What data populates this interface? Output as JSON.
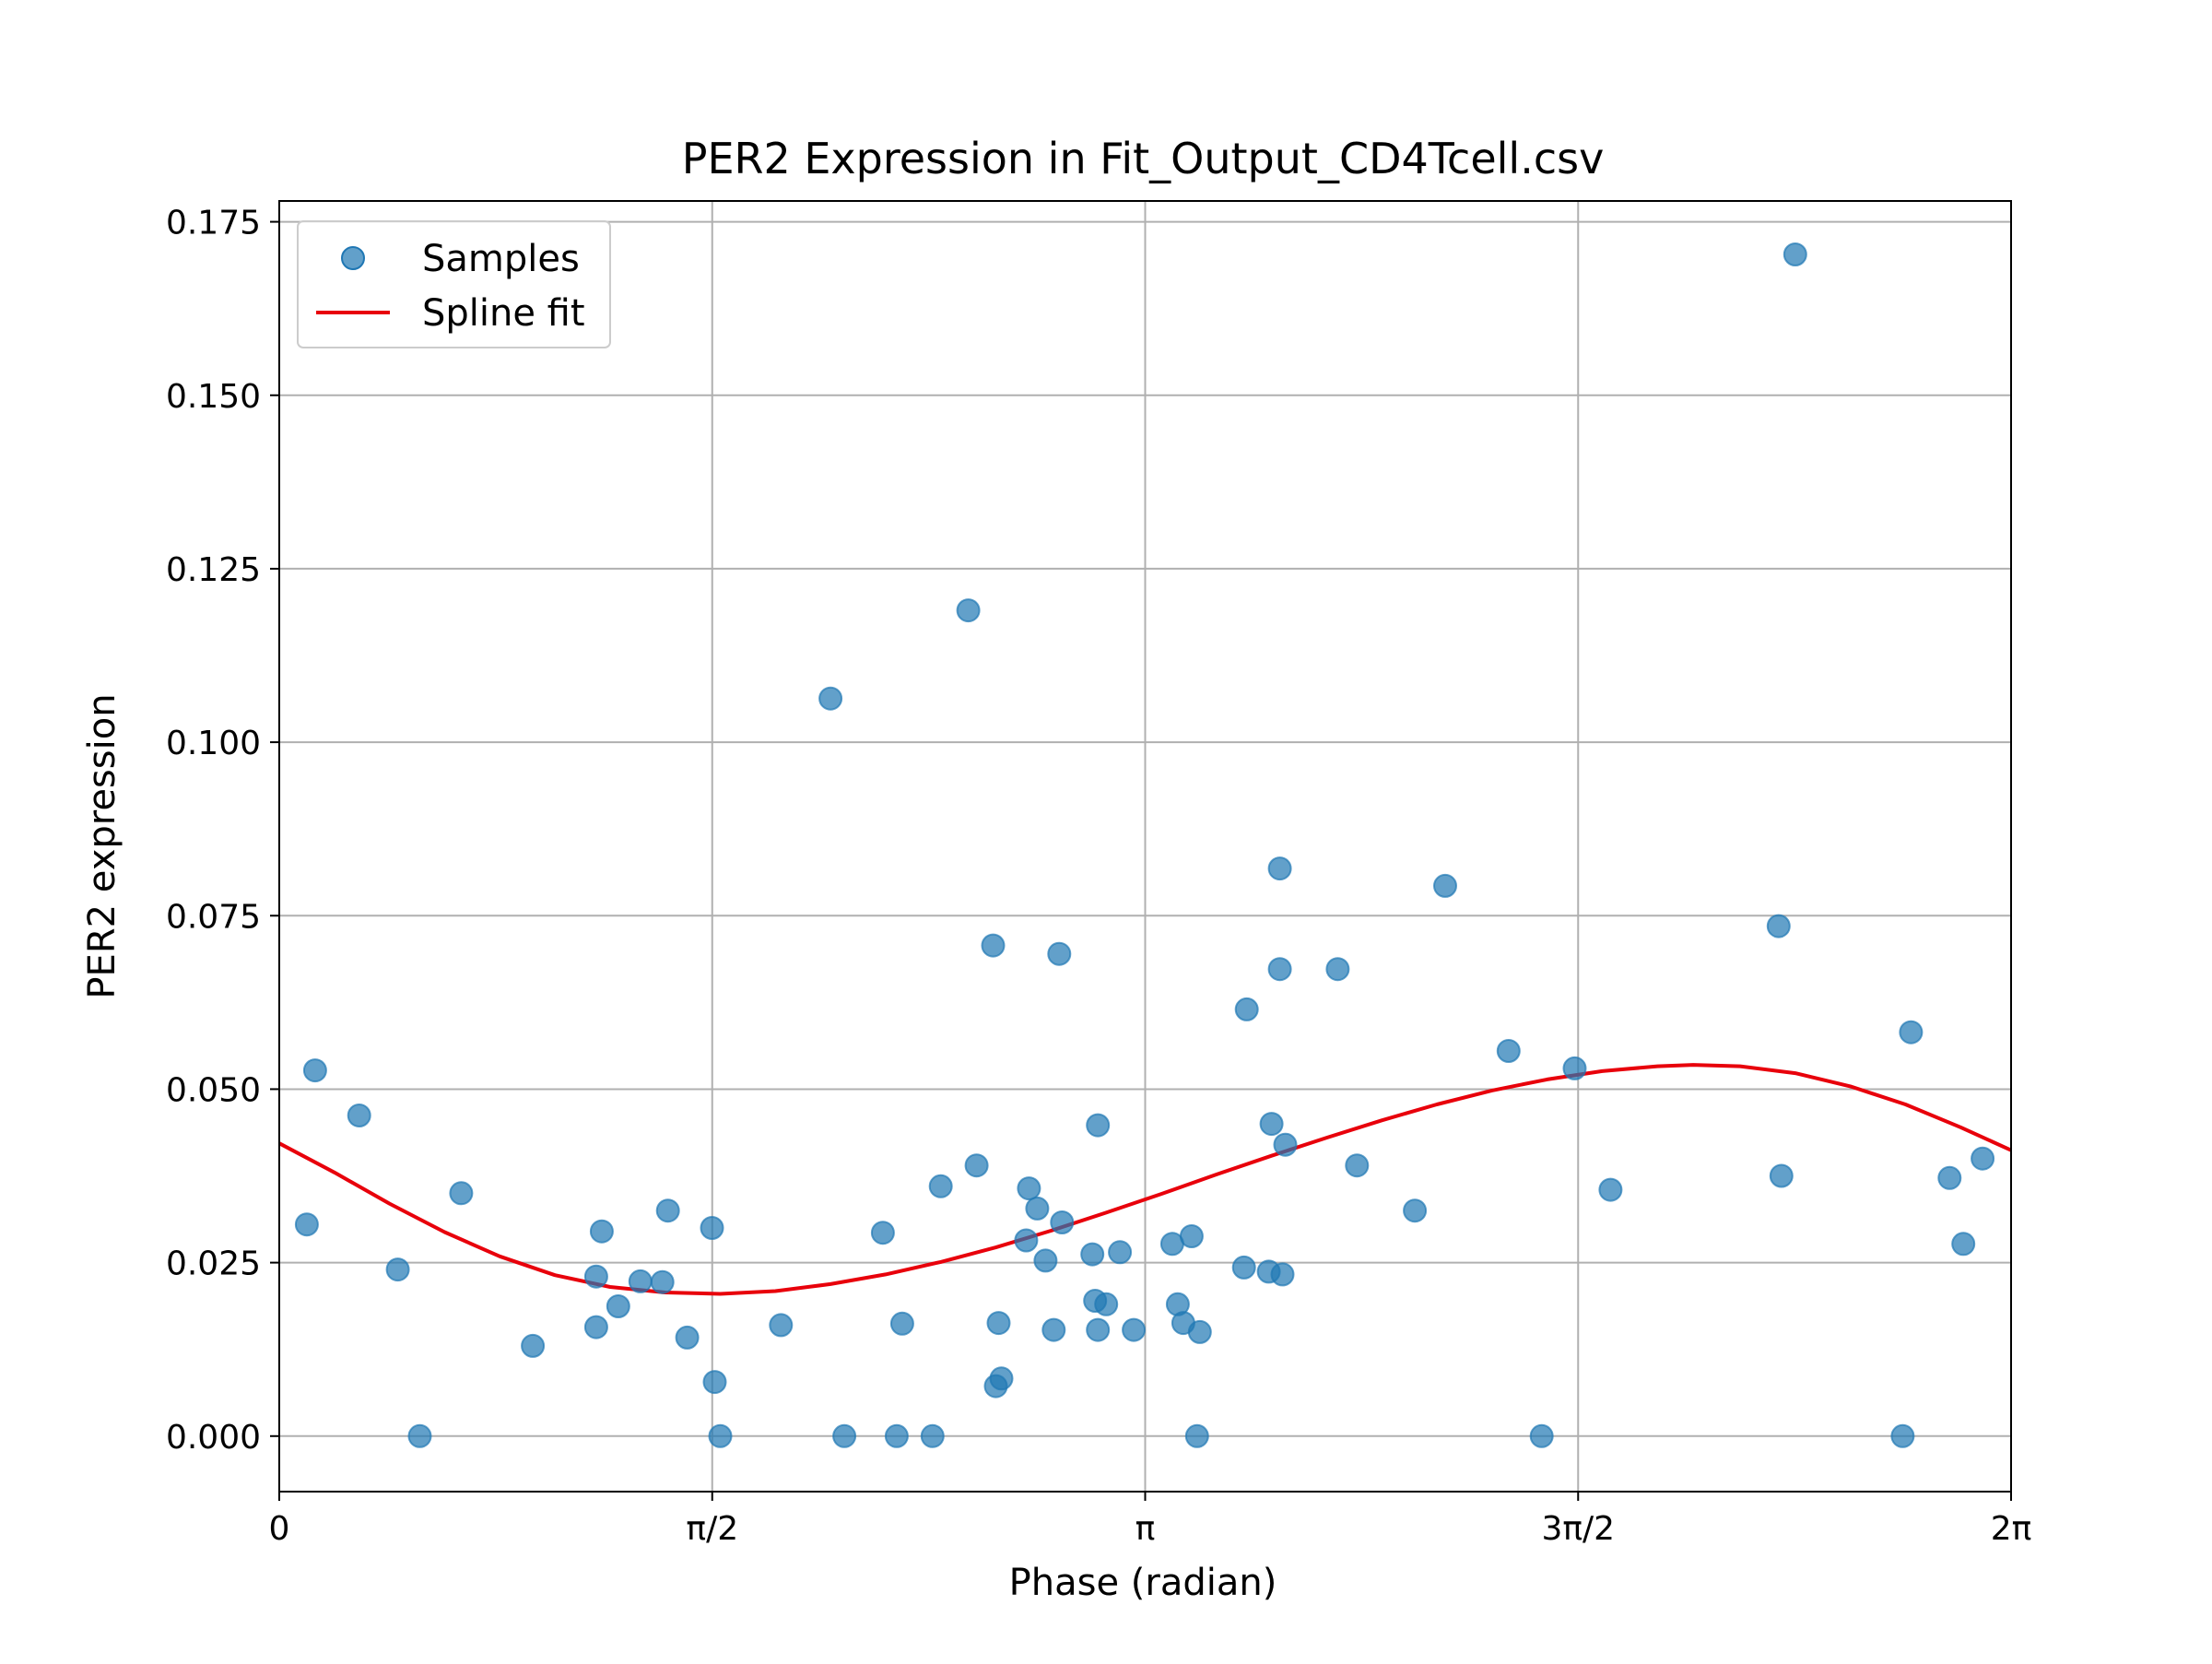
{
  "chart_data": {
    "type": "scatter",
    "title": "PER2 Expression in Fit_Output_CD4Tcell.csv",
    "xlabel": "Phase (radian)",
    "ylabel": "PER2 expression",
    "xlim": [
      0,
      6.2832
    ],
    "ylim": [
      -0.008,
      0.178
    ],
    "x_ticks": [
      {
        "value": 0,
        "label": "0"
      },
      {
        "value": 1.5708,
        "label": "π/2"
      },
      {
        "value": 3.1416,
        "label": "π"
      },
      {
        "value": 4.7124,
        "label": "3π/2"
      },
      {
        "value": 6.2832,
        "label": "2π"
      }
    ],
    "y_ticks": [
      {
        "value": 0.0,
        "label": "0.000"
      },
      {
        "value": 0.025,
        "label": "0.025"
      },
      {
        "value": 0.05,
        "label": "0.050"
      },
      {
        "value": 0.075,
        "label": "0.075"
      },
      {
        "value": 0.1,
        "label": "0.100"
      },
      {
        "value": 0.125,
        "label": "0.125"
      },
      {
        "value": 0.15,
        "label": "0.150"
      },
      {
        "value": 0.175,
        "label": "0.175"
      }
    ],
    "grid": true,
    "legend_position": "top-left",
    "series": [
      {
        "name": "Samples",
        "type": "scatter",
        "color": "#1f77b4",
        "points": [
          [
            0.1,
            0.0305
          ],
          [
            0.13,
            0.0527
          ],
          [
            0.29,
            0.0462
          ],
          [
            0.43,
            0.024
          ],
          [
            0.51,
            0.0
          ],
          [
            0.66,
            0.035
          ],
          [
            0.92,
            0.013
          ],
          [
            1.15,
            0.023
          ],
          [
            1.15,
            0.0157
          ],
          [
            1.17,
            0.0295
          ],
          [
            1.23,
            0.0187
          ],
          [
            1.31,
            0.0223
          ],
          [
            1.39,
            0.0222
          ],
          [
            1.41,
            0.0325
          ],
          [
            1.48,
            0.0142
          ],
          [
            1.57,
            0.03
          ],
          [
            1.58,
            0.0078
          ],
          [
            1.6,
            0.0
          ],
          [
            1.82,
            0.016
          ],
          [
            2.0,
            0.1063
          ],
          [
            2.05,
            0.0
          ],
          [
            2.19,
            0.0293
          ],
          [
            2.24,
            0.0
          ],
          [
            2.26,
            0.0162
          ],
          [
            2.37,
            0.0
          ],
          [
            2.4,
            0.036
          ],
          [
            2.5,
            0.119
          ],
          [
            2.53,
            0.039
          ],
          [
            2.59,
            0.0707
          ],
          [
            2.6,
            0.0072
          ],
          [
            2.61,
            0.0163
          ],
          [
            2.62,
            0.0083
          ],
          [
            2.71,
            0.0282
          ],
          [
            2.72,
            0.0357
          ],
          [
            2.75,
            0.0328
          ],
          [
            2.78,
            0.0253
          ],
          [
            2.81,
            0.0153
          ],
          [
            2.83,
            0.0695
          ],
          [
            2.84,
            0.0308
          ],
          [
            2.95,
            0.0262
          ],
          [
            2.96,
            0.0195
          ],
          [
            2.97,
            0.0153
          ],
          [
            2.97,
            0.0448
          ],
          [
            3.0,
            0.019
          ],
          [
            3.05,
            0.0265
          ],
          [
            3.1,
            0.0153
          ],
          [
            3.24,
            0.0277
          ],
          [
            3.26,
            0.019
          ],
          [
            3.28,
            0.0163
          ],
          [
            3.31,
            0.0288
          ],
          [
            3.33,
            0.0
          ],
          [
            3.34,
            0.015
          ],
          [
            3.5,
            0.0243
          ],
          [
            3.51,
            0.0615
          ],
          [
            3.59,
            0.0237
          ],
          [
            3.6,
            0.045
          ],
          [
            3.63,
            0.0818
          ],
          [
            3.63,
            0.0673
          ],
          [
            3.64,
            0.0233
          ],
          [
            3.65,
            0.042
          ],
          [
            3.84,
            0.0673
          ],
          [
            3.91,
            0.039
          ],
          [
            4.12,
            0.0325
          ],
          [
            4.23,
            0.0793
          ],
          [
            4.46,
            0.0555
          ],
          [
            4.58,
            0.0
          ],
          [
            4.7,
            0.053
          ],
          [
            4.83,
            0.0355
          ],
          [
            5.44,
            0.0735
          ],
          [
            5.45,
            0.0375
          ],
          [
            5.5,
            0.1703
          ],
          [
            5.89,
            0.0
          ],
          [
            5.92,
            0.0582
          ],
          [
            6.06,
            0.0372
          ],
          [
            6.11,
            0.0277
          ],
          [
            6.18,
            0.04
          ]
        ]
      },
      {
        "name": "Spline fit",
        "type": "line",
        "color": "#e8000b",
        "points": [
          [
            0.0,
            0.0422
          ],
          [
            0.2,
            0.038
          ],
          [
            0.4,
            0.0335
          ],
          [
            0.6,
            0.0294
          ],
          [
            0.8,
            0.0259
          ],
          [
            1.0,
            0.0232
          ],
          [
            1.2,
            0.0215
          ],
          [
            1.4,
            0.0207
          ],
          [
            1.6,
            0.0205
          ],
          [
            1.8,
            0.0209
          ],
          [
            2.0,
            0.0219
          ],
          [
            2.2,
            0.0233
          ],
          [
            2.4,
            0.0251
          ],
          [
            2.6,
            0.0272
          ],
          [
            2.8,
            0.0296
          ],
          [
            3.0,
            0.0322
          ],
          [
            3.2,
            0.0349
          ],
          [
            3.4,
            0.0377
          ],
          [
            3.6,
            0.0404
          ],
          [
            3.8,
            0.043
          ],
          [
            4.0,
            0.0455
          ],
          [
            4.2,
            0.0478
          ],
          [
            4.4,
            0.0498
          ],
          [
            4.6,
            0.0514
          ],
          [
            4.8,
            0.0526
          ],
          [
            5.0,
            0.0533
          ],
          [
            5.13,
            0.0535
          ],
          [
            5.3,
            0.0533
          ],
          [
            5.5,
            0.0523
          ],
          [
            5.7,
            0.0504
          ],
          [
            5.9,
            0.0478
          ],
          [
            6.1,
            0.0445
          ],
          [
            6.2832,
            0.0412
          ]
        ]
      }
    ]
  }
}
